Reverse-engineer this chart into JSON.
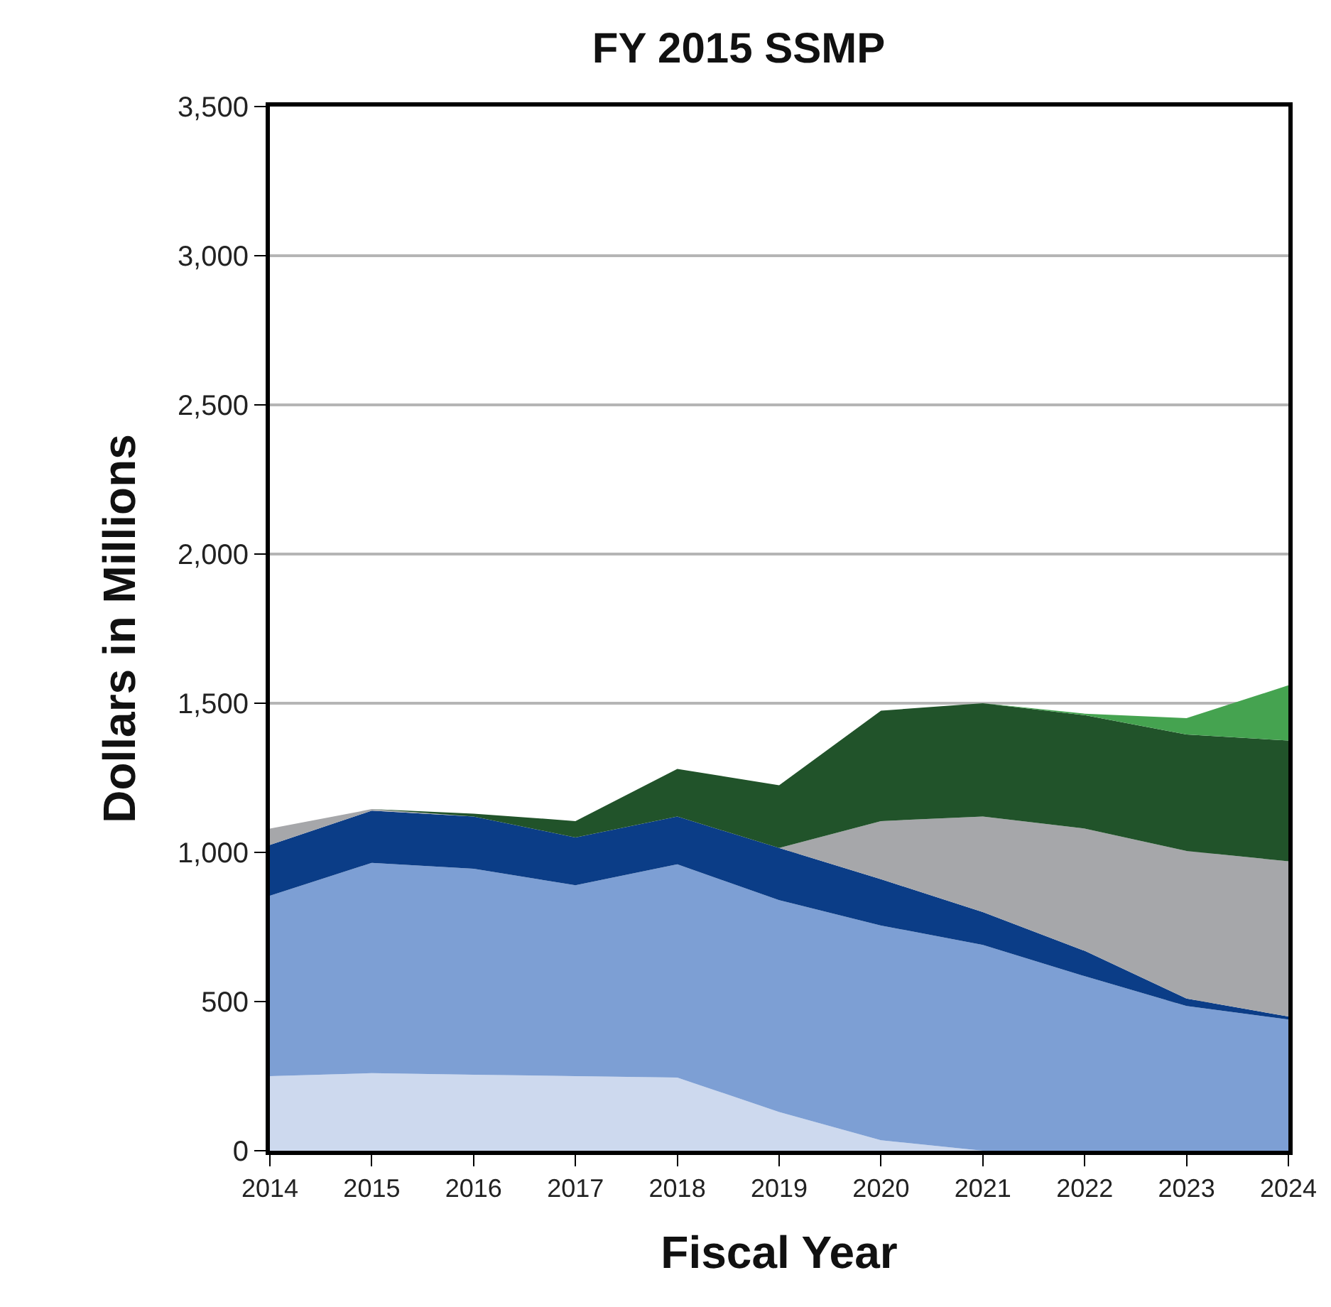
{
  "chart_data": {
    "type": "area",
    "title": "FY 2015 SSMP",
    "xlabel": "Fiscal Year",
    "ylabel": "Dollars in Millions",
    "stacked": true,
    "grid": "y",
    "x": [
      2014,
      2015,
      2016,
      2017,
      2018,
      2019,
      2020,
      2021,
      2022,
      2023,
      2024
    ],
    "xlim": [
      2014,
      2024
    ],
    "xticks": [
      2014,
      2015,
      2016,
      2017,
      2018,
      2019,
      2020,
      2021,
      2022,
      2023,
      2024
    ],
    "ylim": [
      0,
      3500
    ],
    "yticks": [
      0,
      500,
      {
        "value": 1000,
        "label": "1,000"
      },
      {
        "value": 1500,
        "label": "1,500"
      },
      {
        "value": 2000,
        "label": "2,000"
      },
      {
        "value": 2500,
        "label": "2,500"
      },
      {
        "value": 3000,
        "label": "3,000"
      },
      {
        "value": 3500,
        "label": "3,500"
      }
    ],
    "series": [
      {
        "color": "#cdd9ee",
        "values": [
          250,
          260,
          255,
          250,
          245,
          130,
          35,
          0,
          0,
          0,
          0
        ]
      },
      {
        "color": "#7d9fd4",
        "values": [
          605,
          705,
          690,
          640,
          715,
          710,
          720,
          690,
          585,
          485,
          440
        ]
      },
      {
        "color": "#0b3d87",
        "values": [
          170,
          175,
          175,
          160,
          160,
          175,
          155,
          110,
          85,
          25,
          10
        ]
      },
      {
        "color": "#a6a7aa",
        "values": [
          55,
          5,
          0,
          0,
          0,
          0,
          195,
          320,
          410,
          495,
          520
        ]
      },
      {
        "color": "#21532a",
        "values": [
          0,
          0,
          10,
          55,
          160,
          210,
          370,
          380,
          380,
          390,
          405
        ]
      },
      {
        "color": "#45a350",
        "values": [
          0,
          0,
          0,
          0,
          0,
          0,
          0,
          0,
          5,
          55,
          185
        ]
      }
    ]
  }
}
